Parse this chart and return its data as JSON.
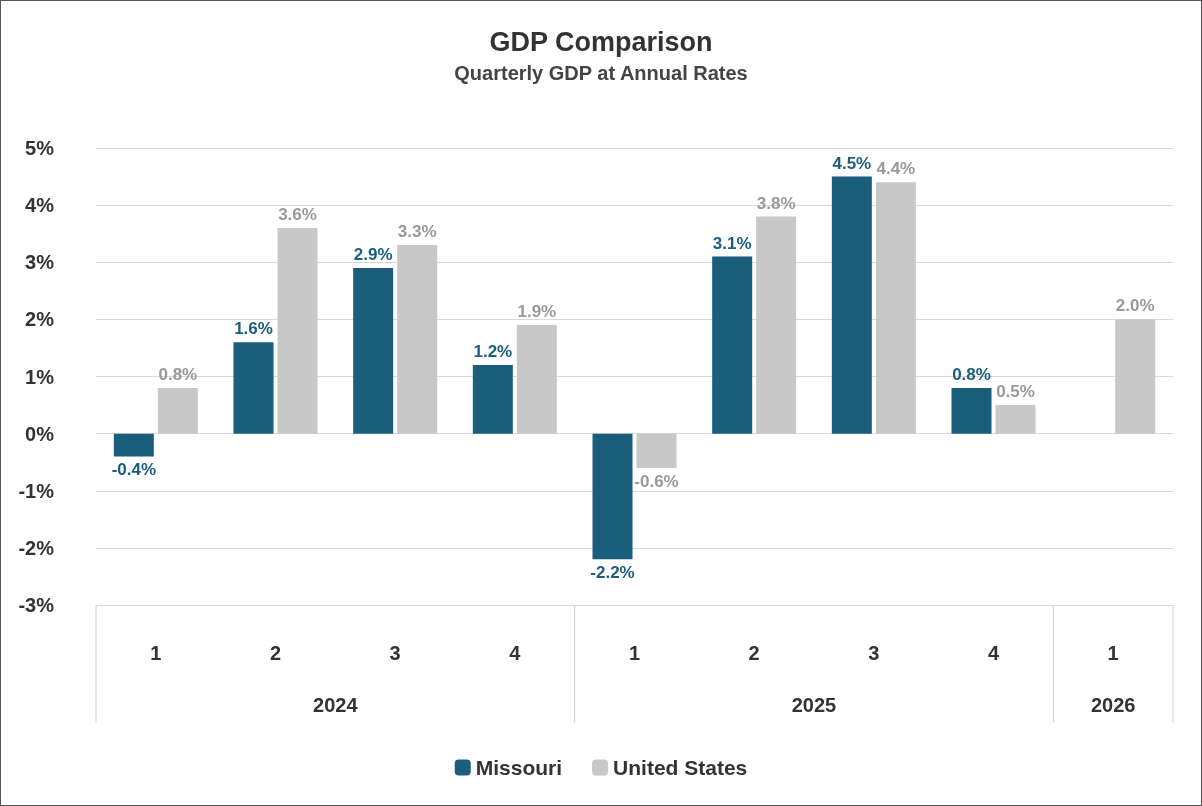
{
  "chart_data": {
    "type": "bar",
    "title": "GDP Comparison",
    "subtitle": "Quarterly GDP at Annual Rates",
    "categories": [
      "1",
      "2",
      "3",
      "4",
      "1",
      "2",
      "3",
      "4",
      "1"
    ],
    "annotations": [
      "2024",
      "2025",
      "2026"
    ],
    "series": [
      {
        "name": "Missouri",
        "color": "#1b5e7b",
        "values": [
          -0.4,
          1.6,
          2.9,
          1.2,
          -2.2,
          3.1,
          4.5,
          0.8,
          null
        ],
        "value_labels": [
          "-0.4%",
          "1.6%",
          "2.9%",
          "1.2%",
          "-2.2%",
          "3.1%",
          "4.5%",
          "0.8%",
          null
        ]
      },
      {
        "name": "United States",
        "color": "#c8c8c8",
        "values": [
          0.8,
          3.6,
          3.3,
          1.9,
          -0.6,
          3.8,
          4.4,
          0.5,
          2.0
        ],
        "value_labels": [
          "0.8%",
          "3.6%",
          "3.3%",
          "1.9%",
          "-0.6%",
          "3.8%",
          "4.4%",
          "0.5%",
          "2.0%"
        ]
      }
    ],
    "ylim": [
      -3,
      5
    ],
    "yticks": [
      {
        "value": -3,
        "label": "-3%"
      },
      {
        "value": -2,
        "label": "-2%"
      },
      {
        "value": -1,
        "label": "-1%"
      },
      {
        "value": 0,
        "label": "0%"
      },
      {
        "value": 1,
        "label": "1%"
      },
      {
        "value": 2,
        "label": "2%"
      },
      {
        "value": 3,
        "label": "3%"
      },
      {
        "value": 4,
        "label": "4%"
      },
      {
        "value": 5,
        "label": "5%"
      }
    ],
    "grid": "y",
    "legend": "bottom"
  }
}
